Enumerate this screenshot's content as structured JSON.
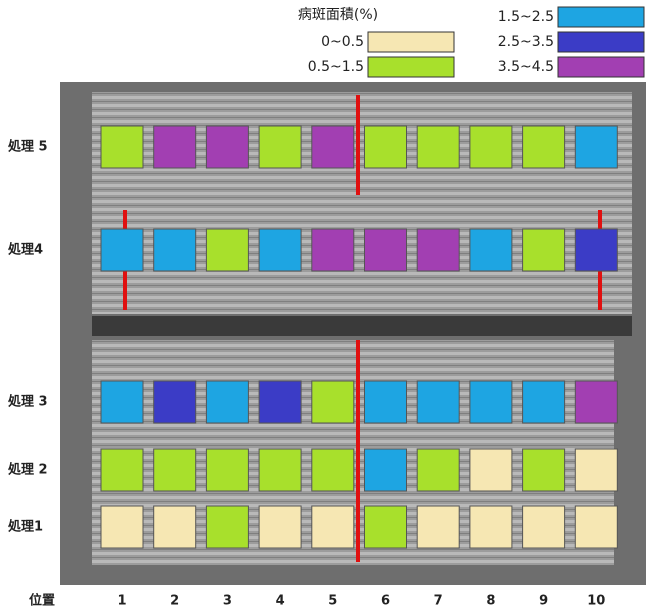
{
  "legend": {
    "title": "病斑面積(%)",
    "items": [
      {
        "label": "0~0.5",
        "color": "#f6e7b3"
      },
      {
        "label": "0.5~1.5",
        "color": "#a8e02c"
      },
      {
        "label": "1.5~2.5",
        "color": "#1ea5e2"
      },
      {
        "label": "2.5~3.5",
        "color": "#3b3cc6"
      },
      {
        "label": "3.5~4.5",
        "color": "#a23fb2"
      }
    ]
  },
  "rows": [
    {
      "label": "処理 5",
      "cells": [
        "#a8e02c",
        "#a23fb2",
        "#a23fb2",
        "#a8e02c",
        "#a23fb2",
        "#a8e02c",
        "#a8e02c",
        "#a8e02c",
        "#a8e02c",
        "#1ea5e2"
      ]
    },
    {
      "label": "処理4",
      "cells": [
        "#1ea5e2",
        "#1ea5e2",
        "#a8e02c",
        "#1ea5e2",
        "#a23fb2",
        "#a23fb2",
        "#a23fb2",
        "#1ea5e2",
        "#a8e02c",
        "#3b3cc6"
      ]
    },
    {
      "label": "処理 3",
      "cells": [
        "#1ea5e2",
        "#3b3cc6",
        "#1ea5e2",
        "#3b3cc6",
        "#a8e02c",
        "#1ea5e2",
        "#1ea5e2",
        "#1ea5e2",
        "#1ea5e2",
        "#a23fb2"
      ]
    },
    {
      "label": "処理 2",
      "cells": [
        "#a8e02c",
        "#a8e02c",
        "#a8e02c",
        "#a8e02c",
        "#a8e02c",
        "#1ea5e2",
        "#a8e02c",
        "#f6e7b3",
        "#a8e02c",
        "#f6e7b3"
      ]
    },
    {
      "label": "処理1",
      "cells": [
        "#f6e7b3",
        "#f6e7b3",
        "#a8e02c",
        "#f6e7b3",
        "#f6e7b3",
        "#a8e02c",
        "#f6e7b3",
        "#f6e7b3",
        "#f6e7b3",
        "#f6e7b3"
      ]
    }
  ],
  "x_axis": {
    "title": "位置",
    "labels": [
      "1",
      "2",
      "3",
      "4",
      "5",
      "6",
      "7",
      "8",
      "9",
      "10"
    ]
  }
}
